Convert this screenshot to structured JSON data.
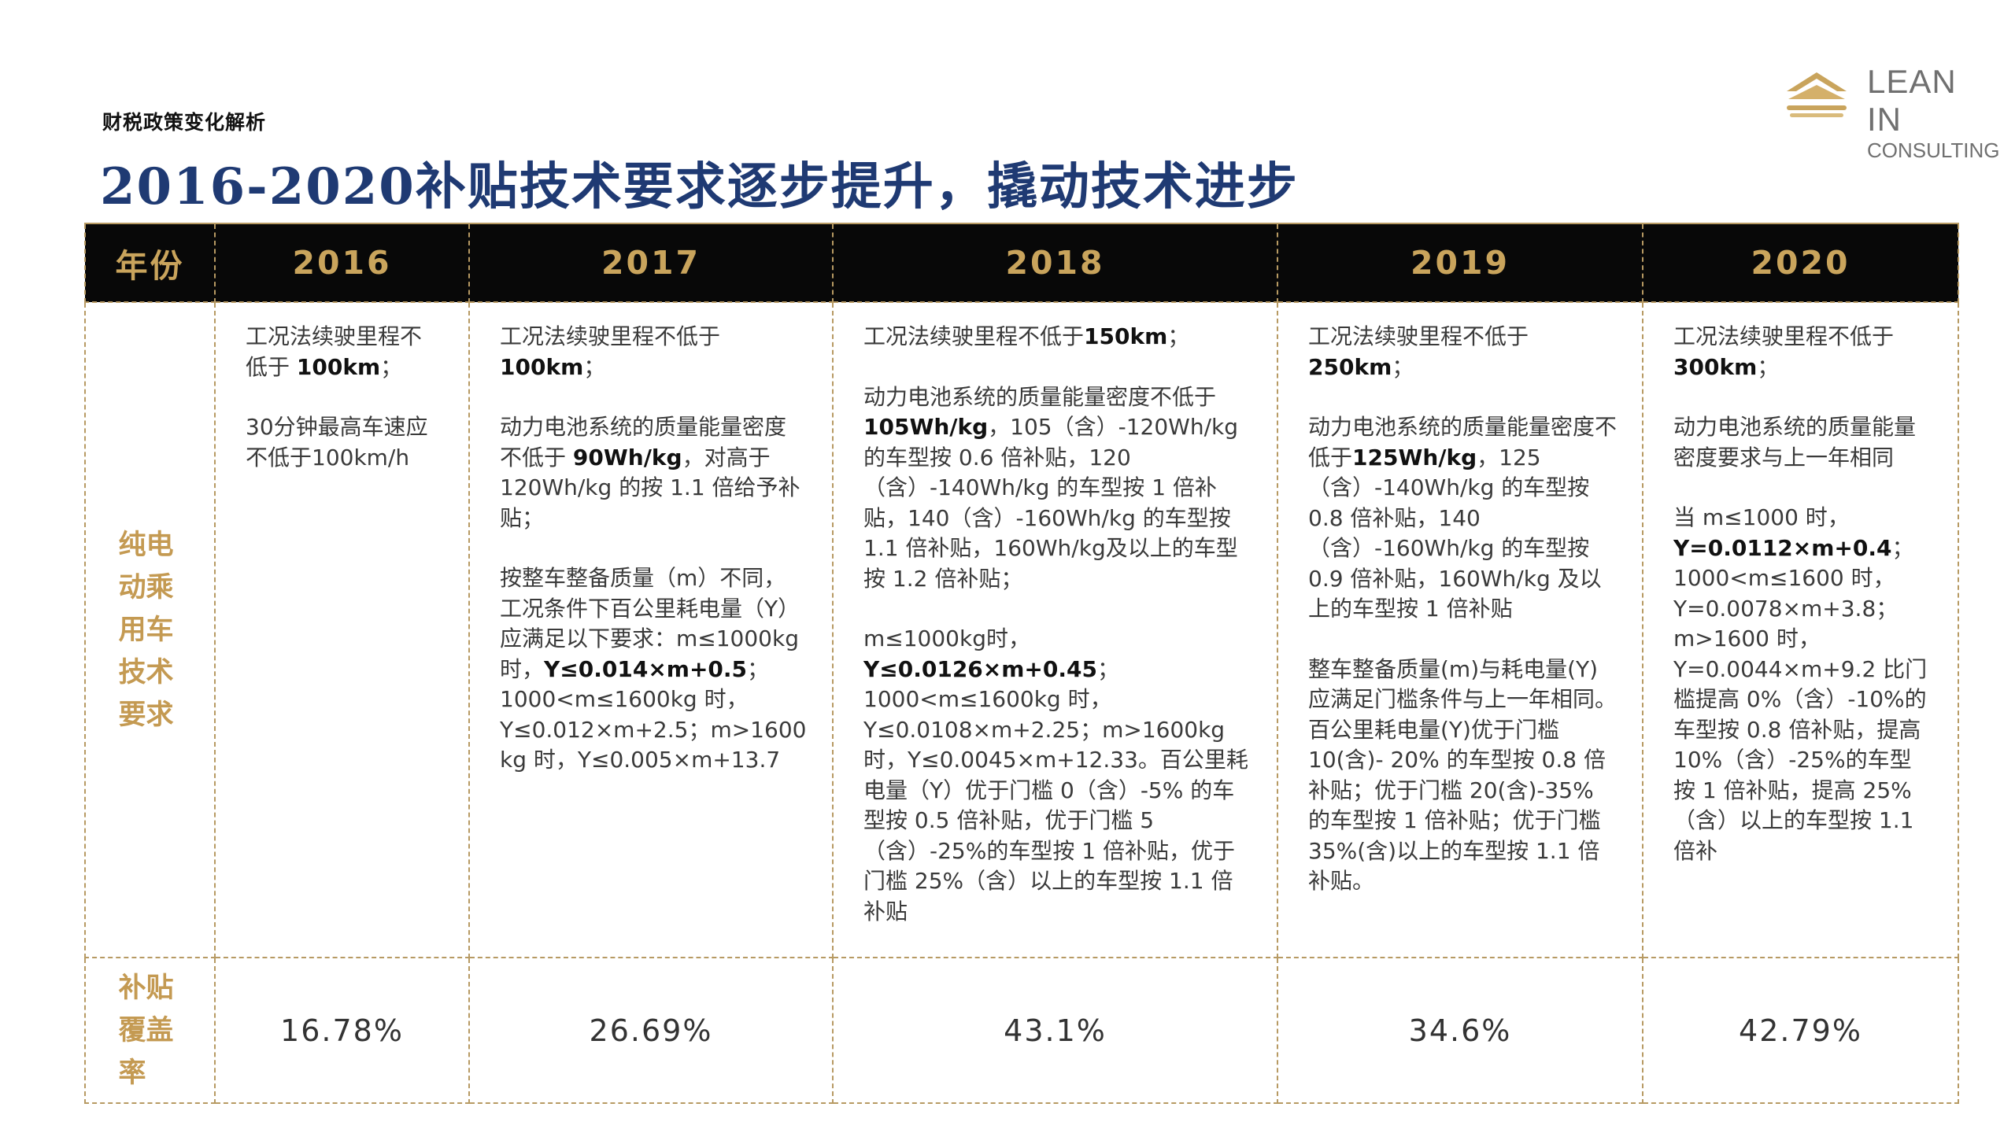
{
  "header": {
    "section_label": "财税政策变化解析",
    "title": "2016-2020补贴技术要求逐步提升，撬动技术进步"
  },
  "logo": {
    "line1": "LEAN IN",
    "line2": "CONSULTING",
    "accent_color": "#c9a45c",
    "text_color": "#707070"
  },
  "table": {
    "header_row": [
      "年份",
      "2016",
      "2017",
      "2018",
      "2019",
      "2020"
    ],
    "row_labels": {
      "requirements": "纯电动乘用车技术要求",
      "coverage": "补贴覆盖率"
    },
    "requirements": {
      "y2016": {
        "p1_a": "工况法续驶里程不低于 ",
        "p1_b": "100km",
        "p1_c": "；",
        "p2": "30分钟最高车速应不低于100km/h"
      },
      "y2017": {
        "p1_a": "工况法续驶里程不低于",
        "p1_b": "100km",
        "p1_c": "；",
        "p2_a": "动力电池系统的质量能量密度不低于 ",
        "p2_b": "90Wh/kg",
        "p2_c": "，对高于 120Wh/kg 的按 1.1 倍给予补贴；",
        "p3_a": "按整车整备质量（m）不同，工况条件下百公里耗电量（Y）应满足以下要求：m≤1000kg时，",
        "p3_b": "Y≤0.014×m+0.5",
        "p3_c": "；1000<m≤1600kg 时，Y≤0.012×m+2.5；m>1600 kg 时，Y≤0.005×m+13.7"
      },
      "y2018": {
        "p1_a": "工况法续驶里程不低于",
        "p1_b": "150km",
        "p1_c": "；",
        "p2_a": "动力电池系统的质量能量密度不低于",
        "p2_b": "105Wh/kg",
        "p2_c": "，105（含）-120Wh/kg 的车型按 0.6 倍补贴，120（含）-140Wh/kg 的车型按 1 倍补贴，140（含）-160Wh/kg 的车型按 1.1 倍补贴，160Wh/kg及以上的车型按 1.2 倍补贴；",
        "p3_a": "m≤1000kg时，",
        "p3_b": "Y≤0.0126×m+0.45",
        "p3_c": "；1000<m≤1600kg 时，Y≤0.0108×m+2.25；m>1600kg 时，Y≤0.0045×m+12.33。百公里耗电量（Y）优于门槛 0（含）-5% 的车型按 0.5 倍补贴，优于门槛 5（含）-25%的车型按 1 倍补贴，优于门槛 25%（含）以上的车型按 1.1 倍补贴"
      },
      "y2019": {
        "p1_a": "工况法续驶里程不低于",
        "p1_b": "250km",
        "p1_c": "；",
        "p2_a": "动力电池系统的质量能量密度不低于",
        "p2_b": "125Wh/kg",
        "p2_c": "，125（含）-140Wh/kg 的车型按 0.8 倍补贴，140（含）-160Wh/kg 的车型按 0.9 倍补贴，160Wh/kg 及以上的车型按 1 倍补贴",
        "p3": "整车整备质量(m)与耗电量(Y)应满足门槛条件与上一年相同。百公里耗电量(Y)优于门槛10(含)- 20% 的车型按 0.8 倍补贴；优于门槛 20(含)-35% 的车型按 1 倍补贴；优于门槛 35%(含)以上的车型按 1.1 倍补贴。"
      },
      "y2020": {
        "p1_a": "工况法续驶里程不低于",
        "p1_b": "300km",
        "p1_c": "；",
        "p2": "动力电池系统的质量能量密度要求与上一年相同",
        "p3_a": "当 m≤1000 时，",
        "p3_b": "Y=0.0112×m+0.4",
        "p3_c": "；1000<m≤1600 时，Y=0.0078×m+3.8；m>1600 时，Y=0.0044×m+9.2 比门槛提高 0%（含）-10%的车型按 0.8 倍补贴，提高 10%（含）-25%的车型按 1 倍补贴，提高 25%（含）以上的车型按 1.1 倍补"
      }
    },
    "coverage": [
      "16.78%",
      "26.69%",
      "43.1%",
      "34.6%",
      "42.79%"
    ]
  }
}
